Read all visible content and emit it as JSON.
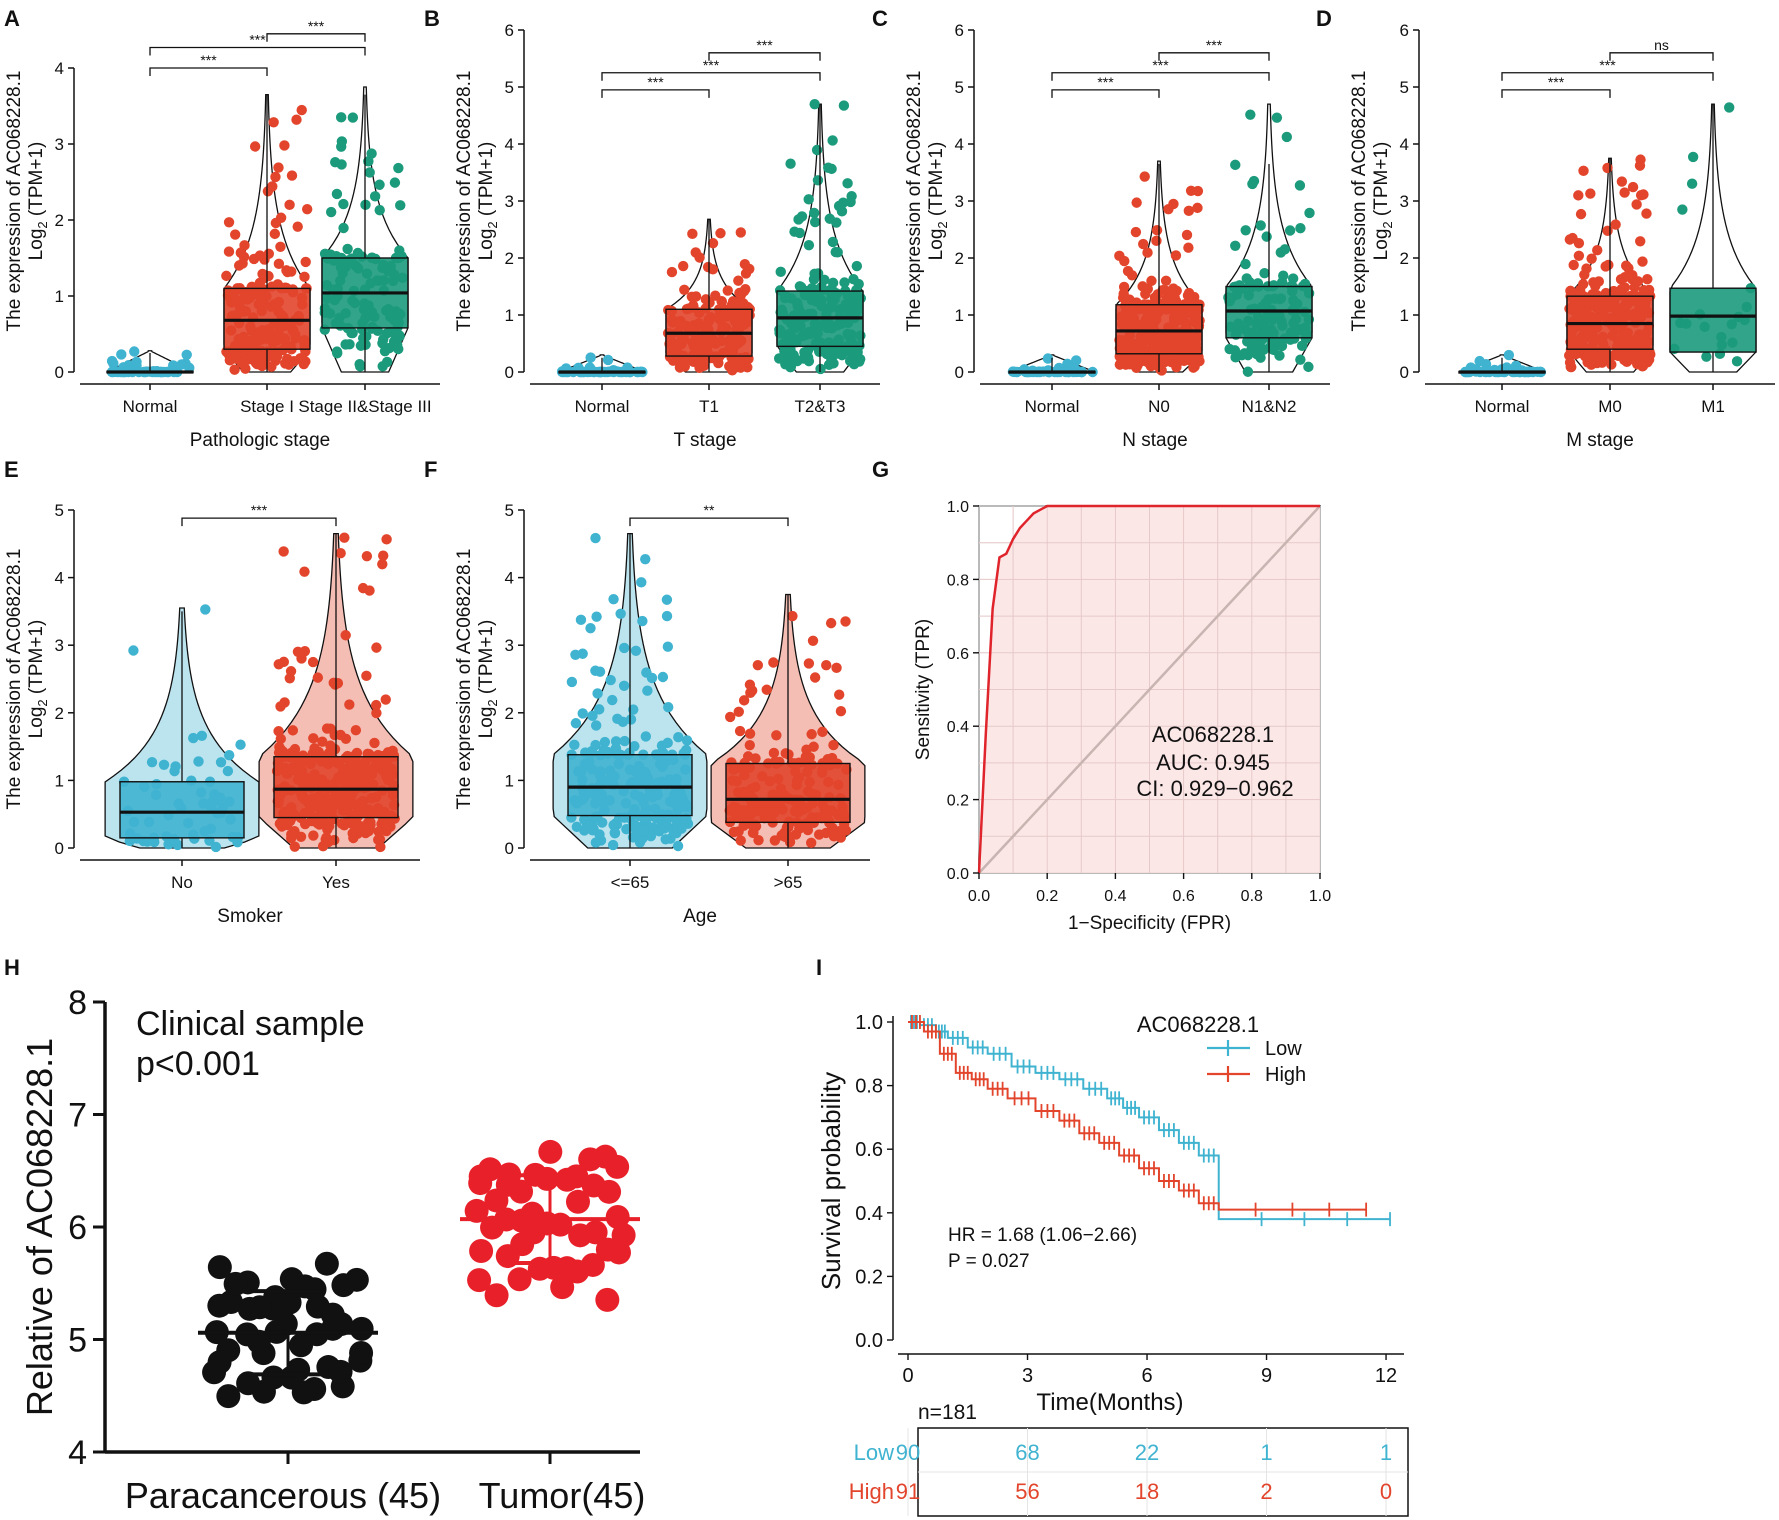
{
  "figure": {
    "panel_letters": [
      "A",
      "B",
      "C",
      "D",
      "E",
      "F",
      "G",
      "H",
      "I"
    ]
  },
  "colors": {
    "blue": "#3fb3d0",
    "red": "#e2452c",
    "green": "#1c9a7c",
    "roc_line": "#e0242c",
    "roc_fill": "#fbe3e3",
    "diag": "#c8b4b0",
    "black": "#111111",
    "tumor_red": "#e8202a"
  },
  "chart_data": [
    {
      "panel": "A",
      "type": "box",
      "ylabel_main": "The expression of AC068228.1",
      "ylabel_sub": "Log",
      "ylabel_sub2": "2",
      "ylabel_sub3": " (TPM+1)",
      "xlabel": "Pathologic stage",
      "ylim": [
        0,
        4.5
      ],
      "yticks": [
        0,
        1,
        2,
        3,
        4
      ],
      "groups": [
        {
          "name": "Normal",
          "color": "blue",
          "q1": 0,
          "median": 0,
          "q3": 0.01,
          "lower": 0,
          "upper": 0.25,
          "ymax": 0.28,
          "n": 50
        },
        {
          "name": "Stage I",
          "color": "red",
          "q1": 0.3,
          "median": 0.68,
          "q3": 1.1,
          "lower": 0,
          "upper": 3.65,
          "ymax": 3.65,
          "n": 200
        },
        {
          "name": "Stage II&Stage III",
          "color": "green",
          "q1": 0.58,
          "median": 1.04,
          "q3": 1.5,
          "lower": 0,
          "upper": 3.65,
          "ymax": 3.75,
          "n": 130
        }
      ],
      "comparisons": [
        {
          "from": 0,
          "to": 1,
          "y": 4.0,
          "label": "***"
        },
        {
          "from": 0,
          "to": 2,
          "y": 4.27,
          "label": "***"
        },
        {
          "from": 1,
          "to": 2,
          "y": 4.45,
          "label": "***"
        }
      ]
    },
    {
      "panel": "B",
      "type": "box",
      "ylabel_main": "The expression of AC068228.1",
      "ylabel_sub": "Log",
      "ylabel_sub2": "2",
      "ylabel_sub3": " (TPM+1)",
      "xlabel": "T stage",
      "ylim": [
        0,
        6
      ],
      "yticks": [
        0,
        1,
        2,
        3,
        4,
        5,
        6
      ],
      "groups": [
        {
          "name": "Normal",
          "color": "blue",
          "q1": 0,
          "median": 0,
          "q3": 0.01,
          "lower": 0,
          "upper": 0.25,
          "ymax": 0.3,
          "n": 50
        },
        {
          "name": "T1",
          "color": "red",
          "q1": 0.28,
          "median": 0.68,
          "q3": 1.1,
          "lower": 0,
          "upper": 2.68,
          "ymax": 2.68,
          "n": 180
        },
        {
          "name": "T2&T3",
          "color": "green",
          "q1": 0.45,
          "median": 0.95,
          "q3": 1.42,
          "lower": 0,
          "upper": 4.7,
          "ymax": 4.7,
          "n": 220
        }
      ],
      "comparisons": [
        {
          "from": 0,
          "to": 1,
          "y": 4.95,
          "label": "***"
        },
        {
          "from": 0,
          "to": 2,
          "y": 5.25,
          "label": "***"
        },
        {
          "from": 1,
          "to": 2,
          "y": 5.6,
          "label": "***"
        }
      ]
    },
    {
      "panel": "C",
      "type": "box",
      "ylabel_main": "The expression of AC068228.1",
      "ylabel_sub": "Log",
      "ylabel_sub2": "2",
      "ylabel_sub3": " (TPM+1)",
      "xlabel": "N stage",
      "ylim": [
        0,
        6
      ],
      "yticks": [
        0,
        1,
        2,
        3,
        4,
        5,
        6
      ],
      "groups": [
        {
          "name": "Normal",
          "color": "blue",
          "q1": 0,
          "median": 0,
          "q3": 0.01,
          "lower": 0,
          "upper": 0.25,
          "ymax": 0.3,
          "n": 50
        },
        {
          "name": "N0",
          "color": "red",
          "q1": 0.32,
          "median": 0.72,
          "q3": 1.18,
          "lower": 0,
          "upper": 3.65,
          "ymax": 3.7,
          "n": 260
        },
        {
          "name": "N1&N2",
          "color": "green",
          "q1": 0.6,
          "median": 1.07,
          "q3": 1.5,
          "lower": 0,
          "upper": 3.65,
          "ymax": 4.7,
          "n": 130
        }
      ],
      "comparisons": [
        {
          "from": 0,
          "to": 1,
          "y": 4.95,
          "label": "***"
        },
        {
          "from": 0,
          "to": 2,
          "y": 5.25,
          "label": "***"
        },
        {
          "from": 1,
          "to": 2,
          "y": 5.6,
          "label": "***"
        }
      ]
    },
    {
      "panel": "D",
      "type": "box",
      "ylabel_main": "The expression of AC068228.1",
      "ylabel_sub": "Log",
      "ylabel_sub2": "2",
      "ylabel_sub3": " (TPM+1)",
      "xlabel": "M stage",
      "ylim": [
        0,
        6
      ],
      "yticks": [
        0,
        1,
        2,
        3,
        4,
        5,
        6
      ],
      "groups": [
        {
          "name": "Normal",
          "color": "blue",
          "q1": 0,
          "median": 0,
          "q3": 0.01,
          "lower": 0,
          "upper": 0.25,
          "ymax": 0.3,
          "n": 50
        },
        {
          "name": "M0",
          "color": "red",
          "q1": 0.4,
          "median": 0.85,
          "q3": 1.33,
          "lower": 0,
          "upper": 3.75,
          "ymax": 3.75,
          "n": 280
        },
        {
          "name": "M1",
          "color": "green",
          "q1": 0.35,
          "median": 0.98,
          "q3": 1.47,
          "lower": 0,
          "upper": 4.7,
          "ymax": 4.7,
          "n": 20
        }
      ],
      "comparisons": [
        {
          "from": 0,
          "to": 1,
          "y": 4.95,
          "label": "***"
        },
        {
          "from": 0,
          "to": 2,
          "y": 5.25,
          "label": "***"
        },
        {
          "from": 1,
          "to": 2,
          "y": 5.6,
          "label": "ns"
        }
      ]
    },
    {
      "panel": "E",
      "type": "violin-box",
      "ylabel_main": "The expression of AC068228.1",
      "ylabel_sub": "Log",
      "ylabel_sub2": "2",
      "ylabel_sub3": " (TPM+1)",
      "xlabel": "Smoker",
      "ylim": [
        0,
        5
      ],
      "yticks": [
        0,
        1,
        2,
        3,
        4,
        5
      ],
      "groups": [
        {
          "name": "No",
          "color": "blue",
          "q1": 0.15,
          "median": 0.53,
          "q3": 0.98,
          "lower": 0,
          "upper": 3.5,
          "ymax": 3.55,
          "n": 60
        },
        {
          "name": "Yes",
          "color": "red",
          "q1": 0.45,
          "median": 0.87,
          "q3": 1.35,
          "lower": 0,
          "upper": 4.65,
          "ymax": 4.65,
          "n": 320
        }
      ],
      "comparisons": [
        {
          "from": 0,
          "to": 1,
          "y": 4.88,
          "label": "***"
        }
      ]
    },
    {
      "panel": "F",
      "type": "violin-box",
      "ylabel_main": "The expression of AC068228.1",
      "ylabel_sub": "Log",
      "ylabel_sub2": "2",
      "ylabel_sub3": " (TPM+1)",
      "xlabel": "Age",
      "ylim": [
        0,
        5
      ],
      "yticks": [
        0,
        1,
        2,
        3,
        4,
        5
      ],
      "groups": [
        {
          "name": "<=65",
          "color": "blue",
          "q1": 0.48,
          "median": 0.9,
          "q3": 1.38,
          "lower": 0,
          "upper": 4.65,
          "ymax": 4.65,
          "n": 220
        },
        {
          "name": ">65",
          "color": "red",
          "q1": 0.38,
          "median": 0.72,
          "q3": 1.25,
          "lower": 0,
          "upper": 3.75,
          "ymax": 3.75,
          "n": 200
        }
      ],
      "comparisons": [
        {
          "from": 0,
          "to": 1,
          "y": 4.88,
          "label": "**"
        }
      ]
    },
    {
      "panel": "G",
      "type": "roc",
      "title_gene": "AC068228.1",
      "auc_label": "AUC: 0.945",
      "ci_label": "CI: 0.929−0.962",
      "xlabel": "1−Specificity (FPR)",
      "ylabel": "Sensitivity (TPR)",
      "xlim": [
        0,
        1
      ],
      "ylim": [
        0,
        1
      ],
      "xticks": [
        "0.0",
        "0.2",
        "0.4",
        "0.6",
        "0.8",
        "1.0"
      ],
      "yticks": [
        "0.0",
        "0.2",
        "0.4",
        "0.6",
        "0.8",
        "1.0"
      ],
      "curve": [
        [
          0,
          0
        ],
        [
          0.02,
          0.38
        ],
        [
          0.04,
          0.72
        ],
        [
          0.06,
          0.86
        ],
        [
          0.08,
          0.87
        ],
        [
          0.09,
          0.89
        ],
        [
          0.1,
          0.91
        ],
        [
          0.12,
          0.94
        ],
        [
          0.14,
          0.96
        ],
        [
          0.16,
          0.98
        ],
        [
          0.18,
          0.99
        ],
        [
          0.2,
          1.0
        ],
        [
          1.0,
          1.0
        ]
      ]
    },
    {
      "panel": "H",
      "type": "scatter-dot",
      "annotation_1": "Clinical sample",
      "annotation_2": "p<0.001",
      "ylabel": "Relative of AC068228.1",
      "ylim": [
        4,
        8
      ],
      "yticks": [
        "4",
        "5",
        "6",
        "7",
        "8"
      ],
      "groups": [
        {
          "name": "Paracancerous (45)",
          "color": "black",
          "mean": 5.06,
          "sd": 0.37,
          "n": 45
        },
        {
          "name": "Tumor(45)",
          "color": "tumor_red",
          "mean": 6.07,
          "sd": 0.39,
          "n": 45
        }
      ]
    },
    {
      "panel": "I",
      "type": "survival",
      "legend_title": "AC068228.1",
      "series": [
        {
          "name": "Low",
          "color": "blue",
          "steps": [
            [
              0,
              1.0
            ],
            [
              0.3,
              0.99
            ],
            [
              0.7,
              0.97
            ],
            [
              1.0,
              0.95
            ],
            [
              1.5,
              0.92
            ],
            [
              2.0,
              0.9
            ],
            [
              2.6,
              0.86
            ],
            [
              3.2,
              0.84
            ],
            [
              3.8,
              0.82
            ],
            [
              4.4,
              0.79
            ],
            [
              5.0,
              0.76
            ],
            [
              5.4,
              0.73
            ],
            [
              5.8,
              0.7
            ],
            [
              6.3,
              0.66
            ],
            [
              6.8,
              0.62
            ],
            [
              7.3,
              0.58
            ],
            [
              7.8,
              0.38
            ],
            [
              12.1,
              0.38
            ]
          ]
        },
        {
          "name": "High",
          "color": "red",
          "steps": [
            [
              0,
              1.0
            ],
            [
              0.4,
              0.97
            ],
            [
              0.8,
              0.9
            ],
            [
              1.2,
              0.84
            ],
            [
              1.6,
              0.82
            ],
            [
              2.0,
              0.79
            ],
            [
              2.5,
              0.76
            ],
            [
              3.2,
              0.72
            ],
            [
              3.8,
              0.69
            ],
            [
              4.3,
              0.65
            ],
            [
              4.8,
              0.62
            ],
            [
              5.3,
              0.58
            ],
            [
              5.8,
              0.54
            ],
            [
              6.3,
              0.5
            ],
            [
              6.8,
              0.47
            ],
            [
              7.3,
              0.43
            ],
            [
              7.8,
              0.41
            ],
            [
              11.5,
              0.41
            ]
          ]
        }
      ],
      "hr_label": "HR = 1.68 (1.06−2.66)",
      "p_label": "P = 0.027",
      "xlabel": "Time(Months)",
      "ylabel": "Survival probability",
      "xlim": [
        0,
        12.3
      ],
      "ylim": [
        0,
        1
      ],
      "xticks": [
        "0",
        "3",
        "6",
        "9",
        "12"
      ],
      "yticks": [
        "0.0",
        "0.2",
        "0.4",
        "0.6",
        "0.8",
        "1.0"
      ],
      "risk_table": {
        "n_label": "n=181",
        "rows": [
          {
            "name": "Low",
            "color": "blue",
            "values": [
              "90",
              "68",
              "22",
              "1",
              "1"
            ]
          },
          {
            "name": "High",
            "color": "red",
            "values": [
              "91",
              "56",
              "18",
              "2",
              "0"
            ]
          }
        ]
      }
    }
  ]
}
